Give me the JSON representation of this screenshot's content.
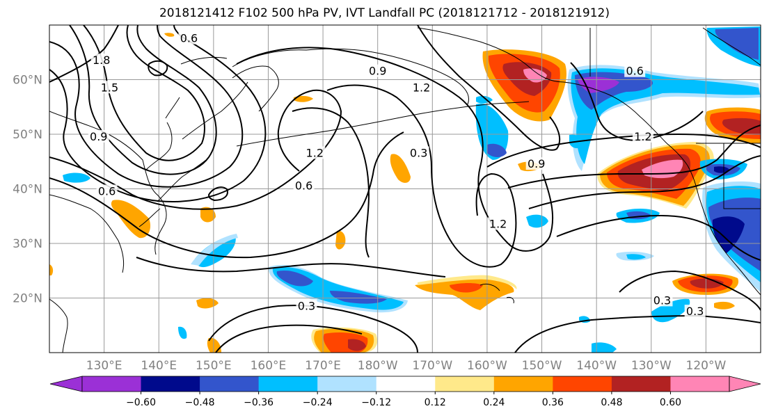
{
  "title": "2018121412 F102 500 hPa PV, IVT Landfall PC (2018121712 - 2018121912)",
  "map": {
    "lat_range": [
      10,
      70
    ],
    "lon_range": [
      120,
      250
    ],
    "lat_ticks": [
      {
        "lat": 20,
        "label": "20°N"
      },
      {
        "lat": 30,
        "label": "30°N"
      },
      {
        "lat": 40,
        "label": "40°N"
      },
      {
        "lat": 50,
        "label": "50°N"
      },
      {
        "lat": 60,
        "label": "60°N"
      }
    ],
    "lon_ticks": [
      {
        "lon": 130,
        "label": "130°E"
      },
      {
        "lon": 140,
        "label": "140°E"
      },
      {
        "lon": 150,
        "label": "150°E"
      },
      {
        "lon": 160,
        "label": "160°E"
      },
      {
        "lon": 170,
        "label": "170°E"
      },
      {
        "lon": 180,
        "label": "180°W"
      },
      {
        "lon": 190,
        "label": "170°W"
      },
      {
        "lon": 200,
        "label": "160°W"
      },
      {
        "lon": 210,
        "label": "150°W"
      },
      {
        "lon": 220,
        "label": "140°W"
      },
      {
        "lon": 230,
        "label": "130°W"
      },
      {
        "lon": 240,
        "label": "120°W"
      }
    ],
    "contour_labels": [
      {
        "text": "0.6",
        "lon": 145.5,
        "lat": 67.5
      },
      {
        "text": "1.8",
        "lon": 129.5,
        "lat": 63.5
      },
      {
        "text": "1.5",
        "lon": 131,
        "lat": 58.5
      },
      {
        "text": "0.9",
        "lon": 129,
        "lat": 49.5
      },
      {
        "text": "0.6",
        "lon": 130.5,
        "lat": 39.5
      },
      {
        "text": "1.2",
        "lon": 168.5,
        "lat": 46.5
      },
      {
        "text": "0.6",
        "lon": 166.5,
        "lat": 40.5
      },
      {
        "text": "0.3",
        "lon": 187.5,
        "lat": 46.5
      },
      {
        "text": "0.9",
        "lon": 180,
        "lat": 61.5
      },
      {
        "text": "1.2",
        "lon": 188,
        "lat": 58.5
      },
      {
        "text": "1.2",
        "lon": 202,
        "lat": 33.5
      },
      {
        "text": "0.9",
        "lon": 209,
        "lat": 44.5
      },
      {
        "text": "0.6",
        "lon": 227,
        "lat": 61.5
      },
      {
        "text": "1.2",
        "lon": 228.5,
        "lat": 49.5
      },
      {
        "text": "0.3",
        "lon": 167,
        "lat": 18.5
      },
      {
        "text": "0.3",
        "lon": 232,
        "lat": 19.5
      },
      {
        "text": "0.3",
        "lon": 238,
        "lat": 17.5
      }
    ]
  },
  "colorbar": {
    "colors": [
      "#9b30d6",
      "#000a8c",
      "#3355cc",
      "#00bfff",
      "#b0e2ff",
      "#ffffff",
      "#ffe98a",
      "#ffa500",
      "#ff4500",
      "#b22222",
      "#ff85b5"
    ],
    "tick_labels": [
      "−0.60",
      "−0.48",
      "−0.36",
      "−0.24",
      "−0.12",
      "0.12",
      "0.24",
      "0.36",
      "0.48",
      "0.60"
    ]
  }
}
